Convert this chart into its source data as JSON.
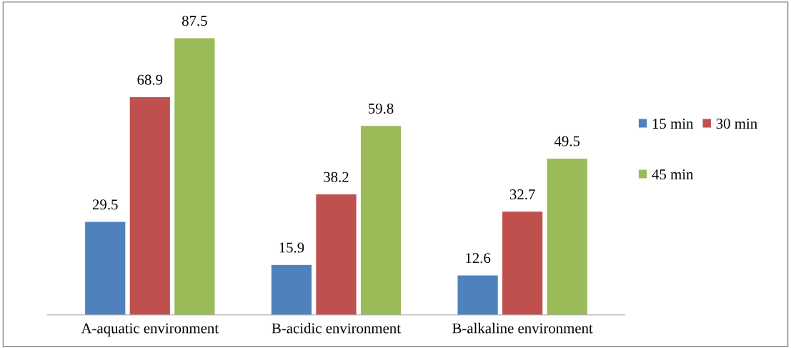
{
  "chart_data": {
    "type": "bar",
    "categories": [
      "A-aquatic environment",
      "B-acidic environment",
      "B-alkaline environment"
    ],
    "series": [
      {
        "name": "15 min",
        "color": "#4f81bd",
        "values": [
          29.5,
          15.9,
          12.6
        ]
      },
      {
        "name": "30 min",
        "color": "#c0504d",
        "values": [
          68.9,
          38.2,
          32.7
        ]
      },
      {
        "name": "45 min",
        "color": "#9bbb59",
        "values": [
          87.5,
          59.8,
          49.5
        ]
      }
    ],
    "data_labels": true,
    "legend": "right",
    "grid": false,
    "tick_labels": "x"
  }
}
